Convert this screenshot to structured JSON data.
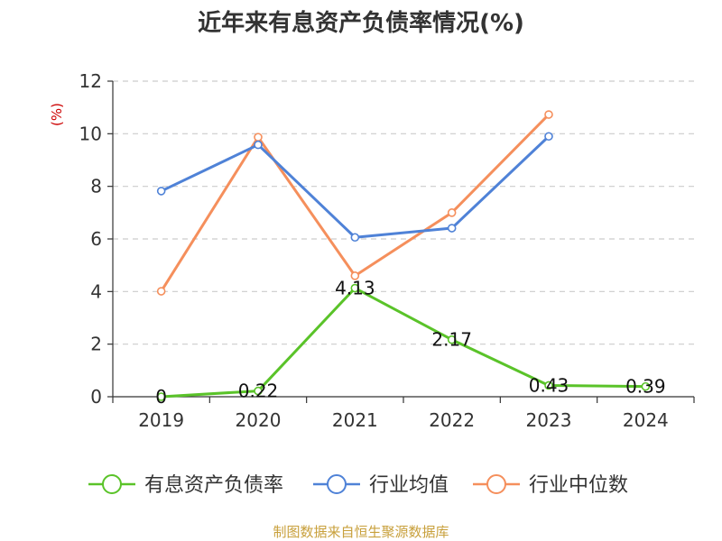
{
  "chart_data": {
    "type": "line",
    "title": "近年来有息资产负债率情况(%)",
    "ylabel": "(%)",
    "xlabel": "",
    "categories": [
      "2019",
      "2020",
      "2021",
      "2022",
      "2023",
      "2024"
    ],
    "ylim": [
      0,
      12
    ],
    "yticks": [
      0,
      2,
      4,
      6,
      8,
      10,
      12
    ],
    "grid": true,
    "legend_position": "bottom",
    "series": [
      {
        "name": "有息资产负债率",
        "color": "#5ac329",
        "values": [
          0,
          0.22,
          4.13,
          2.17,
          0.43,
          0.39
        ],
        "labels": [
          "0",
          "0.22",
          "4.13",
          "2.17",
          "0.43",
          "0.39"
        ]
      },
      {
        "name": "行业均值",
        "color": "#4f82d7",
        "values": [
          7.82,
          9.58,
          6.06,
          6.41,
          9.9,
          null
        ]
      },
      {
        "name": "行业中位数",
        "color": "#f58f5c",
        "values": [
          4.01,
          9.87,
          4.6,
          7.0,
          10.73,
          null
        ]
      }
    ]
  },
  "source_text": "制图数据来自恒生聚源数据库",
  "colors": {
    "ylabel": "#cc0000",
    "source": "#c8a03c",
    "grid": "#cccccc",
    "axis": "#333333"
  }
}
